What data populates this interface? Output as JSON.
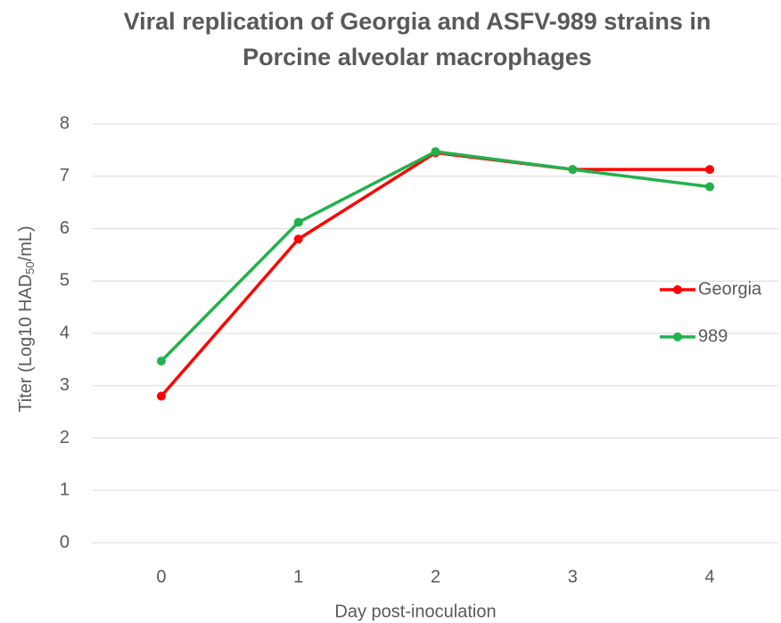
{
  "chart_data": {
    "type": "line",
    "title": [
      "Viral replication of Georgia and ASFV-989 strains in",
      "Porcine alveolar macrophages"
    ],
    "xlabel": "Day post-inoculation",
    "ylabel": [
      "Titer (Log10 HAD",
      "50",
      "/mL)"
    ],
    "x": [
      0,
      1,
      2,
      3,
      4
    ],
    "xlim": [
      -0.5,
      4.5
    ],
    "xticks": [
      0,
      1,
      2,
      3,
      4
    ],
    "ylim": [
      0,
      8
    ],
    "yticks": [
      0,
      1,
      2,
      3,
      4,
      5,
      6,
      7,
      8
    ],
    "grid": true,
    "legend": "right",
    "series": [
      {
        "name": "Georgia",
        "color": "#ff0000",
        "values": [
          2.8,
          5.8,
          7.45,
          7.13,
          7.13
        ]
      },
      {
        "name": "989",
        "color": "#22b14c",
        "values": [
          3.47,
          6.12,
          7.47,
          7.13,
          6.8
        ]
      }
    ]
  }
}
